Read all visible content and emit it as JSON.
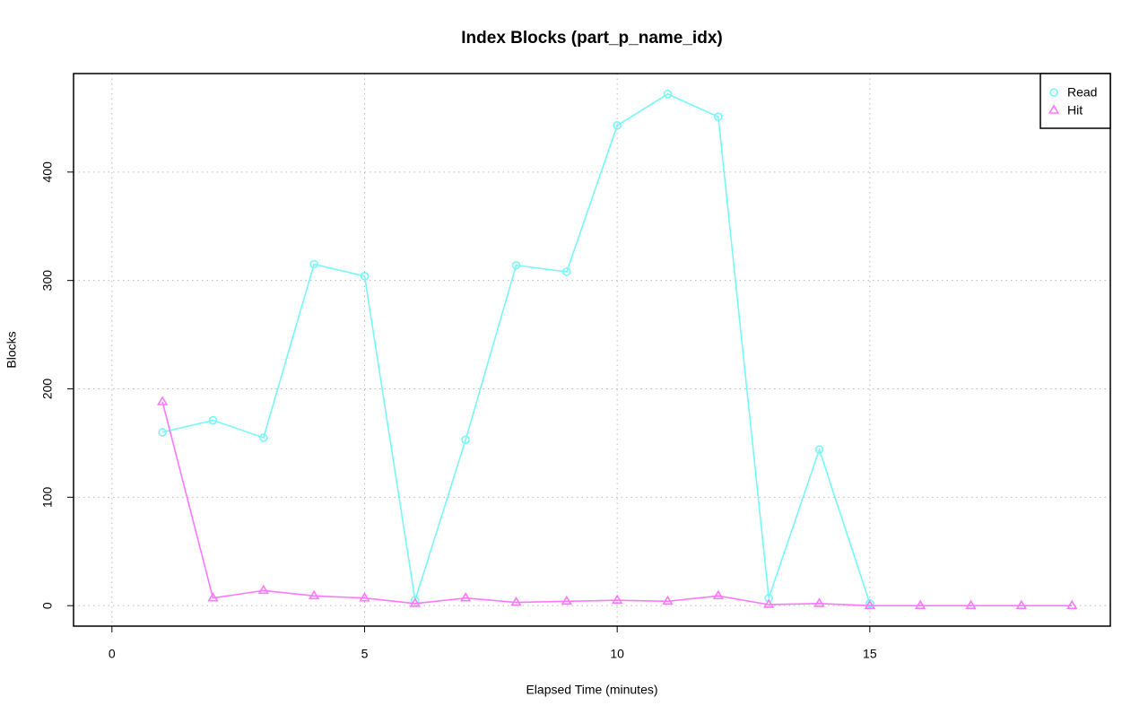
{
  "chart_data": {
    "type": "line",
    "title": "Index Blocks (part_p_name_idx)",
    "x_label": "Elapsed Time (minutes)",
    "y_label": "Blocks",
    "x": [
      1,
      2,
      3,
      4,
      5,
      6,
      7,
      8,
      9,
      10,
      11,
      12,
      13,
      14,
      15,
      16,
      17,
      18,
      19
    ],
    "series": [
      {
        "name": "Read",
        "color": "#77f7f7",
        "marker": "circle",
        "values": [
          160,
          171,
          155,
          315,
          304,
          5,
          153,
          314,
          308,
          443,
          472,
          451,
          7,
          144,
          2,
          null,
          null,
          null,
          null
        ]
      },
      {
        "name": "Hit",
        "color": "#ff77ff",
        "marker": "triangle",
        "values": [
          188,
          7,
          14,
          9,
          7,
          2,
          7,
          3,
          4,
          5,
          4,
          9,
          1,
          2,
          0,
          0,
          0,
          0,
          0
        ]
      }
    ],
    "xlim": [
      -0.76,
      19.76
    ],
    "xticks": [
      0,
      5,
      10,
      15
    ],
    "ylim": [
      -18.88,
      490.88
    ],
    "yticks": [
      0,
      100,
      200,
      300,
      400
    ],
    "grid": true,
    "legend_position": "top-right"
  }
}
